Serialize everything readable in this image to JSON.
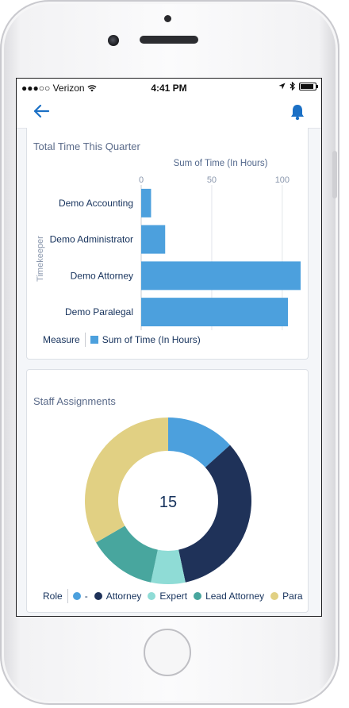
{
  "status_bar": {
    "carrier": "●●●○○ Verizon",
    "time": "4:41 PM"
  },
  "navbar": {
    "back_icon": "arrow-left-icon",
    "notification_icon": "bell-icon",
    "accent_color": "#1b70c5"
  },
  "time_card": {
    "title": "Total Time This Quarter",
    "chart_data": {
      "type": "bar",
      "orientation": "horizontal",
      "xlabel": "Sum of Time (In Hours)",
      "ylabel": "Timekeeper",
      "xticks": [
        "0",
        "50",
        "100"
      ],
      "xlim": [
        0,
        113
      ],
      "categories": [
        "Demo Accounting",
        "Demo Administrator",
        "Demo Attorney",
        "Demo Paralegal"
      ],
      "series": [
        {
          "name": "Sum of Time (In Hours)",
          "values": [
            7,
            17,
            113,
            104
          ],
          "color": "#4ca0dd"
        }
      ],
      "legend_title": "Measure",
      "legend_position": "bottom-left",
      "grid": true
    }
  },
  "assign_card": {
    "title": "Staff Assignments",
    "chart_data": {
      "type": "pie",
      "variant": "donut",
      "center_label": "15",
      "legend_title": "Role",
      "legend_position": "bottom",
      "slices": [
        {
          "label": "-",
          "value": 2,
          "color": "#4ca0dd"
        },
        {
          "label": "Attorney",
          "value": 5,
          "color": "#1f3259"
        },
        {
          "label": "Expert",
          "value": 1,
          "color": "#8fdcd6"
        },
        {
          "label": "Lead Attorney",
          "value": 2,
          "color": "#48a69e"
        },
        {
          "label": "Para",
          "value": 5,
          "color": "#e1d083"
        }
      ]
    }
  }
}
